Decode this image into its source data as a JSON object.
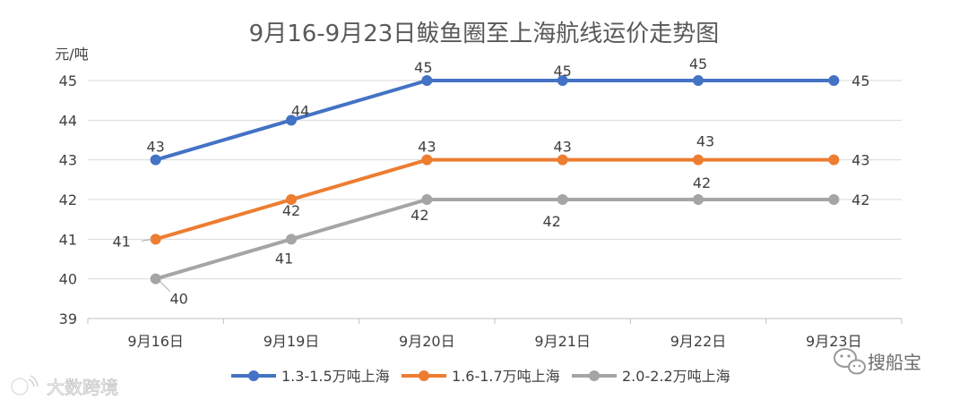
{
  "chart_data": {
    "type": "line",
    "title": "9月16-9月23日鲅鱼圈至上海航线运价走势图",
    "ylabel": "元/吨",
    "xlabel": "",
    "categories": [
      "9月16日",
      "9月19日",
      "9月20日",
      "9月21日",
      "9月22日",
      "9月23日"
    ],
    "ylim": [
      39,
      45
    ],
    "yticks": [
      39,
      40,
      41,
      42,
      43,
      44,
      45
    ],
    "grid": true,
    "legend": "bottom",
    "series": [
      {
        "name": "1.3-1.5万吨上海",
        "color": "#4472C4",
        "values": [
          43,
          44,
          45,
          45,
          45,
          45
        ],
        "labels": [
          "43",
          "44",
          "45",
          "45",
          "45",
          "45"
        ]
      },
      {
        "name": "1.6-1.7万吨上海",
        "color": "#ED7D31",
        "values": [
          41,
          42,
          43,
          43,
          43,
          43
        ],
        "labels": [
          "41",
          "42",
          "43",
          "43",
          "43",
          "43"
        ]
      },
      {
        "name": "2.0-2.2万吨上海",
        "color": "#A5A5A5",
        "values": [
          40,
          41,
          42,
          42,
          42,
          42
        ],
        "labels": [
          "40",
          "41",
          "42",
          "42",
          "42",
          "42"
        ]
      }
    ]
  },
  "watermarks": {
    "left": "大数跨境",
    "right": "搜船宝"
  }
}
